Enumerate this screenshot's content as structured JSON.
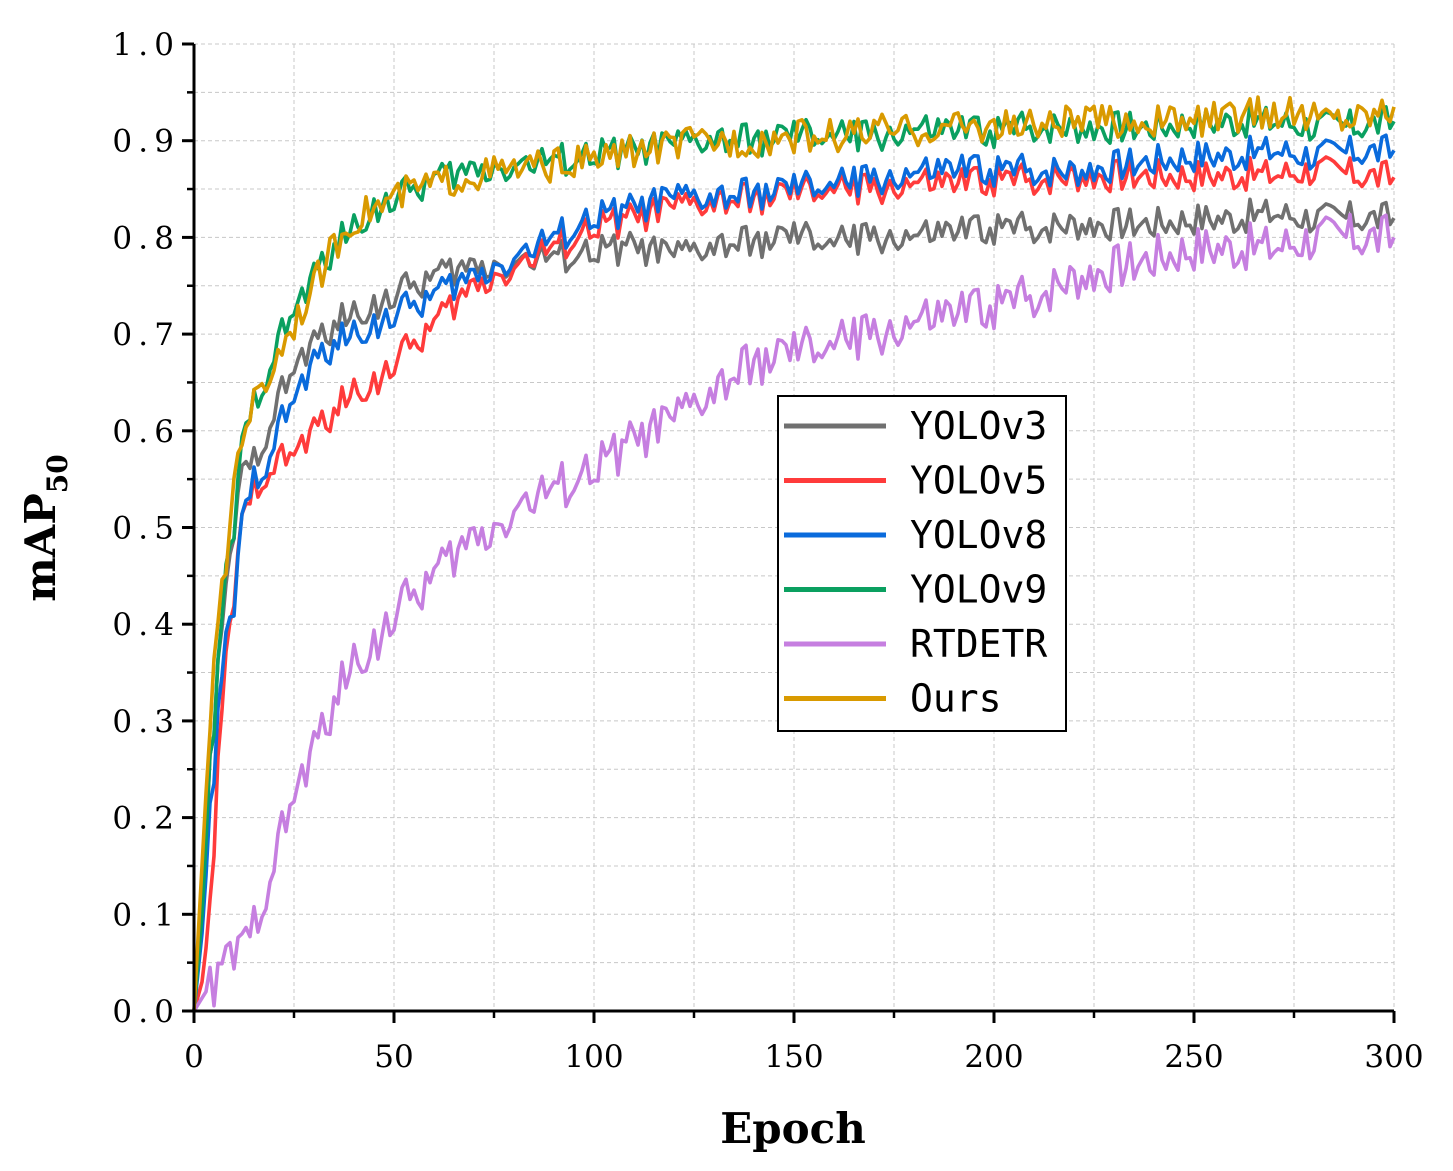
{
  "chart_data": {
    "type": "line",
    "title": "",
    "xlabel": "Epoch",
    "ylabel": "mAP",
    "ylabel_subscript": "50",
    "xlim": [
      0,
      300
    ],
    "ylim": [
      0,
      1.0
    ],
    "x_ticks": [
      "0",
      "50",
      "100",
      "150",
      "200",
      "250",
      "300"
    ],
    "y_ticks": [
      "0.0",
      "0.1",
      "0.2",
      "0.3",
      "0.4",
      "0.5",
      "0.6",
      "0.7",
      "0.8",
      "0.9",
      "1.0"
    ],
    "grid": true,
    "legend_position": "center-right",
    "series": [
      {
        "name": "YOLOv3",
        "color": "#707070",
        "x": [
          0,
          2,
          4,
          6,
          8,
          10,
          12,
          15,
          18,
          22,
          26,
          30,
          35,
          40,
          45,
          50,
          55,
          60,
          65,
          70,
          80,
          90,
          100,
          110,
          120,
          130,
          140,
          150,
          160,
          170,
          180,
          190,
          200,
          210,
          220,
          230,
          240,
          250,
          260,
          270,
          280,
          290,
          300
        ],
        "values": [
          0.0,
          0.1,
          0.25,
          0.35,
          0.43,
          0.5,
          0.55,
          0.57,
          0.6,
          0.64,
          0.67,
          0.69,
          0.71,
          0.72,
          0.73,
          0.74,
          0.75,
          0.76,
          0.765,
          0.77,
          0.775,
          0.78,
          0.785,
          0.79,
          0.78,
          0.79,
          0.795,
          0.8,
          0.795,
          0.8,
          0.8,
          0.805,
          0.81,
          0.81,
          0.815,
          0.815,
          0.815,
          0.82,
          0.82,
          0.825,
          0.82,
          0.82,
          0.82
        ]
      },
      {
        "name": "YOLOv5",
        "color": "#ff3b3b",
        "x": [
          0,
          2,
          4,
          6,
          8,
          10,
          12,
          15,
          18,
          22,
          26,
          30,
          35,
          40,
          45,
          50,
          55,
          60,
          65,
          70,
          80,
          90,
          100,
          110,
          120,
          130,
          140,
          150,
          160,
          170,
          180,
          190,
          200,
          210,
          220,
          230,
          240,
          250,
          260,
          270,
          280,
          290,
          300
        ],
        "values": [
          0.0,
          0.03,
          0.1,
          0.25,
          0.36,
          0.43,
          0.5,
          0.54,
          0.56,
          0.57,
          0.58,
          0.6,
          0.62,
          0.64,
          0.65,
          0.67,
          0.69,
          0.71,
          0.73,
          0.75,
          0.77,
          0.79,
          0.81,
          0.82,
          0.83,
          0.835,
          0.84,
          0.845,
          0.85,
          0.85,
          0.855,
          0.855,
          0.86,
          0.86,
          0.865,
          0.865,
          0.865,
          0.865,
          0.865,
          0.865,
          0.87,
          0.865,
          0.862
        ]
      },
      {
        "name": "YOLOv8",
        "color": "#0a6bdc",
        "x": [
          0,
          2,
          4,
          6,
          8,
          10,
          12,
          15,
          18,
          22,
          26,
          30,
          35,
          40,
          45,
          50,
          55,
          60,
          65,
          70,
          80,
          90,
          100,
          110,
          120,
          130,
          140,
          150,
          160,
          170,
          180,
          190,
          200,
          210,
          220,
          230,
          240,
          250,
          260,
          270,
          280,
          290,
          300
        ],
        "values": [
          0.0,
          0.08,
          0.2,
          0.3,
          0.38,
          0.42,
          0.5,
          0.55,
          0.57,
          0.61,
          0.64,
          0.67,
          0.69,
          0.7,
          0.71,
          0.72,
          0.73,
          0.74,
          0.75,
          0.76,
          0.78,
          0.8,
          0.82,
          0.83,
          0.84,
          0.84,
          0.845,
          0.85,
          0.855,
          0.86,
          0.865,
          0.87,
          0.87,
          0.87,
          0.87,
          0.875,
          0.88,
          0.885,
          0.885,
          0.89,
          0.885,
          0.888,
          0.89
        ]
      },
      {
        "name": "YOLOv9",
        "color": "#0aa060",
        "x": [
          0,
          2,
          4,
          6,
          8,
          10,
          12,
          15,
          18,
          22,
          26,
          30,
          35,
          40,
          45,
          50,
          55,
          60,
          65,
          70,
          80,
          90,
          100,
          110,
          120,
          130,
          140,
          150,
          160,
          170,
          180,
          190,
          200,
          210,
          220,
          230,
          240,
          250,
          260,
          270,
          280,
          290,
          300
        ],
        "values": [
          0.0,
          0.1,
          0.25,
          0.35,
          0.45,
          0.5,
          0.58,
          0.63,
          0.66,
          0.7,
          0.73,
          0.76,
          0.79,
          0.81,
          0.83,
          0.84,
          0.85,
          0.86,
          0.865,
          0.87,
          0.875,
          0.88,
          0.885,
          0.89,
          0.895,
          0.9,
          0.9,
          0.905,
          0.905,
          0.905,
          0.91,
          0.91,
          0.91,
          0.915,
          0.915,
          0.915,
          0.915,
          0.92,
          0.92,
          0.92,
          0.915,
          0.915,
          0.92
        ]
      },
      {
        "name": "RTDETR",
        "color": "#c67fe0",
        "x": [
          0,
          3,
          6,
          9,
          12,
          15,
          18,
          21,
          24,
          27,
          30,
          35,
          40,
          45,
          50,
          55,
          60,
          65,
          70,
          75,
          80,
          90,
          100,
          110,
          120,
          130,
          140,
          150,
          160,
          170,
          180,
          190,
          200,
          210,
          220,
          230,
          240,
          250,
          260,
          270,
          280,
          290,
          300
        ],
        "values": [
          0.0,
          0.02,
          0.03,
          0.06,
          0.06,
          0.09,
          0.13,
          0.17,
          0.21,
          0.24,
          0.27,
          0.32,
          0.36,
          0.38,
          0.41,
          0.43,
          0.45,
          0.47,
          0.49,
          0.5,
          0.52,
          0.54,
          0.56,
          0.59,
          0.61,
          0.64,
          0.67,
          0.68,
          0.69,
          0.7,
          0.71,
          0.72,
          0.73,
          0.74,
          0.76,
          0.77,
          0.78,
          0.79,
          0.79,
          0.79,
          0.8,
          0.8,
          0.8
        ]
      },
      {
        "name": "Ours",
        "color": "#d99a00",
        "x": [
          0,
          2,
          4,
          6,
          8,
          10,
          12,
          15,
          18,
          22,
          26,
          30,
          35,
          40,
          45,
          50,
          55,
          60,
          65,
          70,
          80,
          90,
          100,
          110,
          120,
          130,
          140,
          150,
          160,
          170,
          180,
          190,
          200,
          210,
          220,
          230,
          240,
          250,
          260,
          270,
          280,
          290,
          300
        ],
        "values": [
          0.0,
          0.15,
          0.3,
          0.4,
          0.46,
          0.55,
          0.6,
          0.63,
          0.65,
          0.69,
          0.72,
          0.75,
          0.79,
          0.82,
          0.83,
          0.84,
          0.85,
          0.855,
          0.86,
          0.865,
          0.87,
          0.875,
          0.88,
          0.89,
          0.895,
          0.9,
          0.9,
          0.905,
          0.905,
          0.91,
          0.91,
          0.915,
          0.915,
          0.915,
          0.92,
          0.92,
          0.92,
          0.92,
          0.925,
          0.93,
          0.925,
          0.925,
          0.935
        ]
      }
    ]
  }
}
